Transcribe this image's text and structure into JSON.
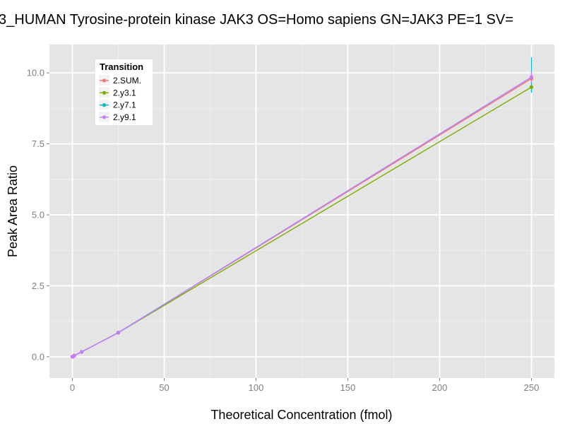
{
  "chart_data": {
    "type": "line",
    "title": "3_HUMAN Tyrosine-protein kinase JAK3 OS=Homo sapiens GN=JAK3 PE=1 SV=",
    "xlabel": "Theoretical Concentration (fmol)",
    "ylabel": "Peak Area Ratio",
    "xlim": [
      -12.5,
      262.5
    ],
    "ylim": [
      -0.75,
      11.0
    ],
    "x_ticks": [
      0,
      50,
      100,
      150,
      200,
      250
    ],
    "x_tick_labels": [
      "0",
      "50",
      "100",
      "150",
      "200",
      "250"
    ],
    "y_ticks": [
      0,
      2.5,
      5,
      7.5,
      10
    ],
    "y_tick_labels": [
      "0.0",
      "2.5",
      "5.0",
      "7.5",
      "10.0"
    ],
    "grid": true,
    "background": "#e5e5e5",
    "legend": {
      "title": "Transition",
      "placement": "top-left",
      "entries": [
        "2.SUM.",
        "2.y3.1",
        "2.y7.1",
        "2.y9.1"
      ]
    },
    "series": [
      {
        "name": "2.SUM.",
        "color": "#f8766d",
        "x": [
          0,
          0.5,
          1,
          5,
          25,
          250
        ],
        "y": [
          0.0,
          0.02,
          0.04,
          0.17,
          0.85,
          9.8
        ],
        "error_at_last": [
          9.6,
          10.0
        ]
      },
      {
        "name": "2.y3.1",
        "color": "#7cae00",
        "x": [
          0,
          0.5,
          1,
          5,
          25,
          250
        ],
        "y": [
          0.0,
          0.02,
          0.04,
          0.17,
          0.85,
          9.5
        ],
        "error_at_last": [
          9.35,
          9.65
        ]
      },
      {
        "name": "2.y7.1",
        "color": "#00bfc4",
        "x": [
          0,
          0.5,
          1,
          5,
          25,
          250
        ],
        "y": [
          0.0,
          0.02,
          0.04,
          0.17,
          0.85,
          9.85
        ],
        "error_at_last": [
          9.3,
          10.55
        ]
      },
      {
        "name": "2.y9.1",
        "color": "#c77cff",
        "x": [
          0,
          0.5,
          1,
          5,
          25,
          250
        ],
        "y": [
          0.0,
          0.02,
          0.04,
          0.17,
          0.85,
          9.85
        ],
        "error_at_last": [
          9.65,
          10.05
        ]
      }
    ]
  }
}
